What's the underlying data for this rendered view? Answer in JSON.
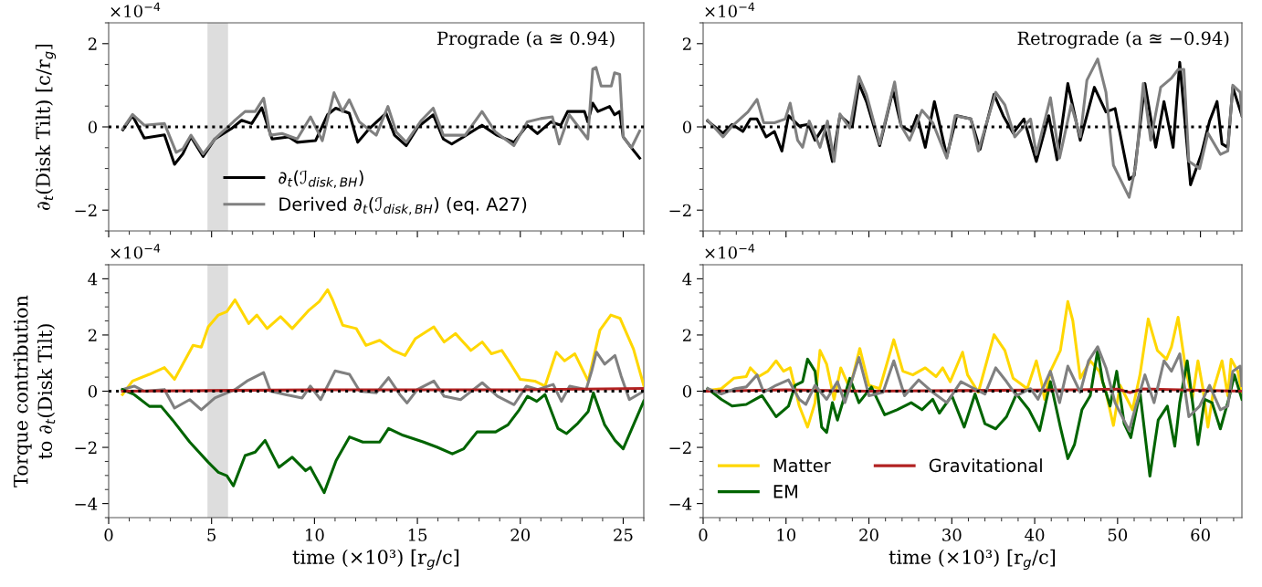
{
  "chart_data": [
    {
      "type": "line",
      "ylabel": "∂$_{t}$(Disk Tilt) [c/r$_{g}$]",
      "annotations": [
        "×10$^{−4}$",
        "Prograde (a ≊ 0.94)"
      ],
      "xlim": [
        0,
        26
      ],
      "xticks": [
        0,
        5,
        10,
        15,
        20,
        25
      ],
      "ylim": [
        -2.5,
        2.5
      ],
      "yticks": [
        -2,
        0,
        2
      ],
      "tick_labels": "y",
      "legend": "bottom",
      "grid": false,
      "ref_lines": [
        {
          "axis": "y",
          "value": 0,
          "color": "#000000",
          "line_style": "dotted"
        }
      ],
      "bands": [
        {
          "axis": "x",
          "from": 4.8,
          "to": 5.8,
          "color": "#dddddd"
        }
      ],
      "series": [
        {
          "name": "∂$_{t}$(ℐ$_{disk,BH}$)",
          "color": "#000000",
          "x": [
            0.69,
            1.16,
            1.73,
            2.71,
            3.2,
            3.6,
            4.0,
            4.59,
            5.16,
            5.97,
            6.46,
            6.95,
            7.44,
            7.94,
            8.75,
            9.16,
            10.05,
            10.63,
            11.03,
            11.69,
            12.1,
            12.67,
            13.48,
            13.89,
            14.46,
            15.03,
            15.77,
            16.26,
            16.67,
            17.24,
            18.14,
            18.87,
            19.69,
            20.34,
            20.83,
            21.48,
            21.97,
            22.3,
            23.12,
            23.28,
            23.52,
            23.77,
            24.34,
            24.58,
            24.83,
            25.0,
            25.4,
            25.8
          ],
          "values": [
            -0.07,
            0.27,
            -0.27,
            -0.19,
            -0.9,
            -0.65,
            -0.24,
            -0.71,
            -0.29,
            -0.04,
            0.16,
            0.08,
            0.46,
            -0.29,
            -0.24,
            -0.37,
            -0.33,
            0.29,
            0.45,
            0.33,
            -0.37,
            -0.04,
            0.33,
            -0.2,
            -0.45,
            0,
            0.29,
            -0.29,
            -0.41,
            -0.24,
            0.04,
            -0.2,
            -0.37,
            0.04,
            -0.16,
            0.12,
            0.04,
            0.37,
            0.37,
            0.12,
            0.57,
            0.37,
            0.49,
            0.29,
            0.37,
            -0.24,
            -0.5,
            -0.75
          ]
        },
        {
          "name": "Derived ∂$_{t}$(ℐ$_{disk,BH}$) (eq. A27)",
          "color": "#808080",
          "x": [
            0.69,
            1.16,
            1.73,
            2.71,
            3.28,
            3.6,
            4.0,
            4.59,
            5.16,
            6.14,
            6.63,
            7.12,
            7.53,
            7.85,
            8.42,
            9.16,
            9.81,
            10.38,
            10.95,
            11.36,
            11.69,
            12.18,
            13.0,
            13.57,
            13.97,
            14.46,
            15.2,
            15.77,
            16.26,
            16.91,
            17.32,
            18.14,
            18.79,
            19.69,
            20.34,
            20.99,
            21.56,
            21.89,
            22.38,
            23.28,
            23.52,
            23.68,
            23.93,
            24.42,
            24.58,
            24.83,
            25.0,
            25.4,
            25.8
          ],
          "values": [
            -0.04,
            0.3,
            0.04,
            0.08,
            -0.61,
            -0.53,
            -0.2,
            -0.65,
            -0.29,
            0.16,
            0.37,
            0.37,
            0.69,
            -0.2,
            -0.16,
            -0.29,
            0.24,
            -0.33,
            0.82,
            0.37,
            0.65,
            0.12,
            -0.2,
            0.49,
            -0.12,
            -0.37,
            0.16,
            0.45,
            -0.2,
            -0.2,
            -0.2,
            0.37,
            -0.12,
            -0.45,
            0.12,
            0.2,
            0.24,
            -0.41,
            0.29,
            -0.29,
            1.39,
            1.43,
            0.98,
            0.98,
            1.3,
            1.26,
            -0.24,
            -0.5,
            -0.1
          ]
        }
      ]
    },
    {
      "type": "line",
      "annotations": [
        "×10$^{−4}$",
        "Retrograde (a ≊ −0.94)"
      ],
      "xlim": [
        0,
        65
      ],
      "xticks": [
        0,
        10,
        20,
        30,
        40,
        50,
        60
      ],
      "ylim": [
        -2.5,
        2.5
      ],
      "yticks": [
        -2,
        0,
        2
      ],
      "tick_labels": "y",
      "grid": false,
      "ref_lines": [
        {
          "axis": "y",
          "value": 0,
          "color": "#000000",
          "line_style": "dotted"
        }
      ],
      "series": [
        {
          "color": "#000000",
          "x": [
            0.55,
            2.4,
            3.5,
            4.8,
            5.7,
            6.5,
            7.6,
            8.6,
            9.5,
            10.3,
            11.6,
            12.7,
            13.5,
            14.6,
            15.6,
            16.5,
            18.0,
            18.8,
            19.7,
            21.3,
            22.9,
            23.9,
            25.1,
            25.8,
            26.8,
            27.9,
            29.4,
            30.6,
            32.3,
            33.4,
            35.1,
            36.2,
            37.4,
            38.7,
            40.2,
            41.7,
            42.7,
            44.0,
            45.5,
            47.2,
            48.6,
            49.7,
            51.4,
            52.0,
            53.3,
            54.6,
            55.6,
            56.7,
            57.5,
            58.8,
            60.1,
            61.1,
            62.0,
            62.6,
            63.3,
            63.9,
            65
          ],
          "values": [
            0.14,
            -0.15,
            0.06,
            -0.11,
            0.19,
            0.19,
            -0.24,
            -0.11,
            -0.58,
            0.27,
            0.02,
            0.06,
            -0.32,
            0.02,
            -0.83,
            0.27,
            0.02,
            1.04,
            0.61,
            -0.45,
            0.87,
            0.02,
            -0.11,
            0.27,
            -0.49,
            0.61,
            -0.71,
            0.27,
            0.19,
            -0.54,
            0.78,
            0.27,
            -0.15,
            0.19,
            -0.83,
            0.27,
            -0.79,
            1.04,
            -0.32,
            0.95,
            0.36,
            0.44,
            -1.26,
            -1.17,
            1.04,
            -0.49,
            0.61,
            -0.49,
            1.55,
            -1.39,
            -0.66,
            0.14,
            0.61,
            -0.41,
            -0.49,
            0.95,
            0.27
          ]
        },
        {
          "color": "#808080",
          "x": [
            0.55,
            2.4,
            3.5,
            5.4,
            6.5,
            7.3,
            8.6,
            9.9,
            10.5,
            11.4,
            12.0,
            12.8,
            14.1,
            15.0,
            15.8,
            16.5,
            17.7,
            18.8,
            19.7,
            21.3,
            23.1,
            23.9,
            24.9,
            26.4,
            27.7,
            29.4,
            30.4,
            32.3,
            33.2,
            35.3,
            36.4,
            37.6,
            39.5,
            40.2,
            41.9,
            43.0,
            44.4,
            45.5,
            46.3,
            47.6,
            48.6,
            49.5,
            51.4,
            52.2,
            53.1,
            54.0,
            55.2,
            56.5,
            57.3,
            58.0,
            58.6,
            59.9,
            60.9,
            62.4,
            63.3,
            63.9,
            64.8,
            65
          ],
          "values": [
            0.16,
            -0.24,
            0.02,
            0.36,
            0.66,
            0.1,
            0.1,
            0.19,
            0.57,
            -0.32,
            -0.49,
            0.14,
            -0.49,
            0.14,
            -0.83,
            0.31,
            -0.03,
            1.21,
            0.78,
            -0.41,
            1.08,
            0.02,
            -0.32,
            0.4,
            0.1,
            -0.75,
            0.27,
            0.19,
            -0.58,
            0.83,
            0.53,
            -0.24,
            0.19,
            -0.66,
            0.7,
            -0.75,
            0.53,
            -0.24,
            1.12,
            1.63,
            0.83,
            -0.92,
            -1.69,
            -0.92,
            1.04,
            -0.32,
            0.95,
            1.17,
            1.38,
            1.38,
            -0.83,
            -1.0,
            -0.15,
            -0.66,
            -0.58,
            1.0,
            0.83,
            0.27
          ]
        }
      ]
    },
    {
      "type": "line",
      "ylabel": "Torque contribution\nto ∂$_{t}$(Disk Tilt)",
      "xlabel": "time (×10³) [r$_{g}$/c]",
      "annotations": [
        "×10$^{−4}$"
      ],
      "xlim": [
        0,
        26
      ],
      "xticks": [
        0,
        5,
        10,
        15,
        20,
        25
      ],
      "ylim": [
        -4.5,
        4.5
      ],
      "yticks": [
        -4,
        -2,
        0,
        2,
        4
      ],
      "grid": false,
      "ref_lines": [
        {
          "axis": "y",
          "value": 0,
          "color": "#000000",
          "line_style": "dotted"
        }
      ],
      "bands": [
        {
          "axis": "x",
          "from": 4.8,
          "to": 5.8,
          "color": "#dddddd"
        }
      ],
      "series": [
        {
          "color": "#ffd700",
          "x": [
            0.67,
            1.16,
            1.98,
            2.71,
            3.2,
            4.1,
            4.5,
            4.84,
            5.33,
            5.74,
            6.14,
            6.8,
            7.2,
            7.7,
            8.35,
            8.92,
            9.74,
            10.23,
            10.64,
            10.88,
            11.37,
            12.03,
            12.5,
            13.17,
            13.82,
            14.4,
            14.9,
            15.8,
            16.3,
            16.85,
            17.6,
            18.15,
            18.6,
            19.1,
            19.54,
            20.0,
            20.7,
            21.2,
            21.75,
            22.15,
            22.65,
            23.3,
            23.87,
            24.4,
            24.85,
            25.5,
            26.0
          ],
          "values": [
            -0.12,
            0.36,
            0.6,
            0.84,
            0.42,
            1.63,
            1.57,
            2.29,
            2.71,
            2.83,
            3.25,
            2.41,
            2.71,
            2.23,
            2.65,
            2.23,
            2.89,
            3.19,
            3.61,
            3.25,
            2.35,
            2.23,
            1.63,
            1.81,
            1.45,
            1.27,
            1.87,
            2.29,
            1.75,
            2.05,
            1.45,
            1.75,
            1.33,
            1.45,
            0.96,
            0.42,
            0.36,
            0.18,
            1.39,
            1.08,
            1.33,
            0.36,
            2.17,
            2.71,
            2.59,
            1.5,
            0.2
          ]
        },
        {
          "color": "#808080",
          "x": [
            0.67,
            1.24,
            1.73,
            2.71,
            3.2,
            3.94,
            4.5,
            5.16,
            6.14,
            6.72,
            7.53,
            7.86,
            8.6,
            9.4,
            9.8,
            10.3,
            11.0,
            11.7,
            12.2,
            13.0,
            13.6,
            14.15,
            14.5,
            15.0,
            15.8,
            16.3,
            17.1,
            18.15,
            18.9,
            19.7,
            20.3,
            20.85,
            21.6,
            22.0,
            22.4,
            23.2,
            23.47,
            23.7,
            24.1,
            24.6,
            24.9,
            25.3,
            26.0
          ],
          "values": [
            0.06,
            0.18,
            0,
            0.06,
            -0.6,
            -0.3,
            -0.66,
            -0.24,
            0.06,
            0.36,
            0.66,
            0,
            -0.12,
            -0.24,
            0.18,
            -0.3,
            0.72,
            0.6,
            0,
            -0.06,
            0.48,
            -0.12,
            -0.42,
            0.06,
            0.36,
            -0.18,
            -0.3,
            0.3,
            -0.18,
            -0.48,
            0.18,
            0.06,
            0.24,
            -0.36,
            0.18,
            0.06,
            0.72,
            1.39,
            0.96,
            1.27,
            0.54,
            -0.3,
            0
          ]
        },
        {
          "color": "#006400",
          "x": [
            0.67,
            1.24,
            1.98,
            2.55,
            3.1,
            3.94,
            4.84,
            5.33,
            5.74,
            6.06,
            6.63,
            7.12,
            7.6,
            8.27,
            8.92,
            9.57,
            9.8,
            10.47,
            11.05,
            11.7,
            12.35,
            13.17,
            13.6,
            14.3,
            15.3,
            15.95,
            16.7,
            17.25,
            17.9,
            18.8,
            19.4,
            19.95,
            20.35,
            20.8,
            21.2,
            21.83,
            22.25,
            22.8,
            23.3,
            23.55,
            24.1,
            24.6,
            25.0,
            25.5,
            26.0
          ],
          "values": [
            0.06,
            -0.12,
            -0.54,
            -0.54,
            -1.02,
            -1.81,
            -2.53,
            -2.89,
            -3.01,
            -3.37,
            -2.29,
            -2.17,
            -1.75,
            -2.71,
            -2.35,
            -2.83,
            -2.71,
            -3.61,
            -2.47,
            -1.63,
            -1.81,
            -1.81,
            -1.33,
            -1.57,
            -1.81,
            -1.99,
            -2.23,
            -2.05,
            -1.45,
            -1.45,
            -1.2,
            -0.66,
            -0.18,
            -0.36,
            -0.12,
            -1.33,
            -1.51,
            -1.14,
            -0.72,
            -0.06,
            -1.2,
            -1.75,
            -2.05,
            -1.2,
            -0.35
          ]
        },
        {
          "color": "#b22222",
          "x": [
            0.67,
            10,
            20,
            26
          ],
          "values": [
            0,
            0.05,
            0.05,
            0.1
          ]
        }
      ]
    },
    {
      "type": "line",
      "xlabel": "time (×10³) [r$_{g}$/c]",
      "annotations": [
        "×10$^{−4}$"
      ],
      "xlim": [
        0,
        65
      ],
      "xticks": [
        0,
        10,
        20,
        30,
        40,
        50,
        60
      ],
      "ylim": [
        -4.5,
        4.5
      ],
      "yticks": [
        -4,
        -2,
        0,
        2,
        4
      ],
      "legend": "bottom left",
      "grid": false,
      "ref_lines": [
        {
          "axis": "y",
          "value": 0,
          "color": "#000000",
          "line_style": "dotted"
        }
      ],
      "series": [
        {
          "name": "Matter",
          "color": "#ffd700",
          "x": [
            0.55,
            2.2,
            3.7,
            5.2,
            5.7,
            6.7,
            7.8,
            8.8,
            9.7,
            10.5,
            11.6,
            12.6,
            13.5,
            14.1,
            14.9,
            15.8,
            16.6,
            17.7,
            18.9,
            20.0,
            21.3,
            23.0,
            24.1,
            25.3,
            26.8,
            28.1,
            28.9,
            29.8,
            31.3,
            31.9,
            33.2,
            35.1,
            36.4,
            37.4,
            39.1,
            40.2,
            40.8,
            41.2,
            41.9,
            43.1,
            44.0,
            44.6,
            45.5,
            46.7,
            47.8,
            48.6,
            49.5,
            50.3,
            51.8,
            52.7,
            53.7,
            54.8,
            55.9,
            56.5,
            57.3,
            58.2,
            59.0,
            59.7,
            60.3,
            60.9,
            61.6,
            62.6,
            63.3,
            63.7,
            64.5,
            65
          ],
          "values": [
            0.02,
            0.09,
            0.46,
            0.52,
            0.83,
            0.52,
            0.71,
            1.08,
            0.71,
            0.83,
            -0.53,
            -1.28,
            -0.41,
            1.45,
            0.96,
            -0.29,
            0.83,
            0.09,
            1.52,
            0.21,
            0.09,
            1.83,
            0.71,
            0.58,
            0.83,
            0.52,
            0.83,
            0.34,
            1.39,
            0.58,
            -0.04,
            2.01,
            1.45,
            0.46,
            0.09,
            1.08,
            0.34,
            -0.29,
            0.71,
            1.45,
            3.19,
            2.51,
            0.46,
            1.08,
            0.71,
            -0.04,
            -1.22,
            0.21,
            -0.66,
            0.58,
            2.57,
            1.45,
            1.14,
            1.58,
            2.63,
            0.83,
            -0.29,
            1.08,
            0.09,
            -1.28,
            0.09,
            1.08,
            -0.16,
            1.14,
            0.71,
            -0.04
          ]
        },
        {
          "name": "EM",
          "color": "#006400",
          "x": [
            0.55,
            2.2,
            3.5,
            5.2,
            6.3,
            7.1,
            8.8,
            10.3,
            11.1,
            12.0,
            12.6,
            13.5,
            14.3,
            14.9,
            15.6,
            16.2,
            17.7,
            18.8,
            20.3,
            21.9,
            23.4,
            25.1,
            26.4,
            27.7,
            28.5,
            30.0,
            31.5,
            32.8,
            34.0,
            35.3,
            36.6,
            37.8,
            39.3,
            40.6,
            41.9,
            43.1,
            44.0,
            44.8,
            45.7,
            46.7,
            47.6,
            48.2,
            49.1,
            49.9,
            50.8,
            51.6,
            52.7,
            53.9,
            54.9,
            56.0,
            56.9,
            57.5,
            58.4,
            59.7,
            60.5,
            61.4,
            62.4,
            63.4,
            64.1,
            65.0
          ],
          "values": [
            0.09,
            -0.29,
            -0.53,
            -0.47,
            -0.29,
            -0.16,
            -0.91,
            -0.53,
            0.21,
            0.34,
            1.14,
            0.71,
            -1.28,
            -1.47,
            -0.41,
            -1.03,
            0.46,
            -0.41,
            0.15,
            -0.84,
            -0.66,
            -0.41,
            -0.66,
            -0.29,
            -0.78,
            -0.16,
            -1.28,
            -0.1,
            -1.16,
            -1.34,
            -0.91,
            -0.1,
            -0.66,
            -1.4,
            0.34,
            -1.28,
            -2.4,
            -1.9,
            -0.66,
            -0.16,
            1.45,
            0.34,
            -0.53,
            0.71,
            -1.16,
            -1.65,
            -0.04,
            -3.02,
            -1.03,
            -0.53,
            -1.96,
            -0.41,
            1.08,
            -1.9,
            -0.29,
            -0.41,
            -1.34,
            -0.29,
            0.58,
            -0.29
          ]
        },
        {
          "name": "Gravitational",
          "color": "#b22222",
          "x": [
            0.5,
            10,
            20,
            30,
            45,
            50,
            51.5,
            53,
            60,
            65
          ],
          "values": [
            0,
            0.05,
            0,
            0.02,
            0.05,
            0.07,
            -0.05,
            0.08,
            0.03,
            0
          ]
        },
        {
          "color": "#808080",
          "x": [
            0.55,
            2.2,
            3.9,
            5.2,
            6.5,
            7.3,
            8.8,
            10.3,
            11.6,
            12.4,
            13.5,
            14.9,
            16.2,
            17.1,
            18.8,
            20.0,
            21.7,
            23.0,
            24.3,
            26.0,
            27.7,
            29.4,
            31.1,
            32.7,
            34.0,
            35.3,
            36.6,
            37.8,
            39.5,
            40.4,
            41.9,
            43.0,
            44.0,
            45.5,
            46.5,
            47.6,
            48.6,
            49.7,
            51.4,
            52.2,
            53.3,
            54.4,
            55.6,
            56.5,
            57.5,
            58.6,
            59.9,
            61.1,
            62.4,
            63.3,
            63.9,
            64.8,
            65
          ],
          "values": [
            0.09,
            -0.1,
            0.09,
            0.15,
            0.58,
            -0.04,
            0.21,
            0.4,
            -0.29,
            -0.47,
            0.21,
            -0.29,
            0.34,
            -0.41,
            1.2,
            -0.16,
            -0.04,
            1.08,
            -0.16,
            0.4,
            -0.04,
            -0.41,
            0.34,
            0.09,
            -0.1,
            0.83,
            0.34,
            -0.16,
            0.09,
            -0.29,
            0.71,
            -0.41,
            0.89,
            -0.04,
            1.08,
            1.58,
            0.83,
            -0.41,
            -1.4,
            -0.53,
            0.58,
            -0.41,
            1.08,
            0.71,
            1.33,
            -0.91,
            -0.53,
            0.21,
            -0.66,
            -0.53,
            0.71,
            0.89,
            0.2
          ]
        }
      ]
    }
  ]
}
